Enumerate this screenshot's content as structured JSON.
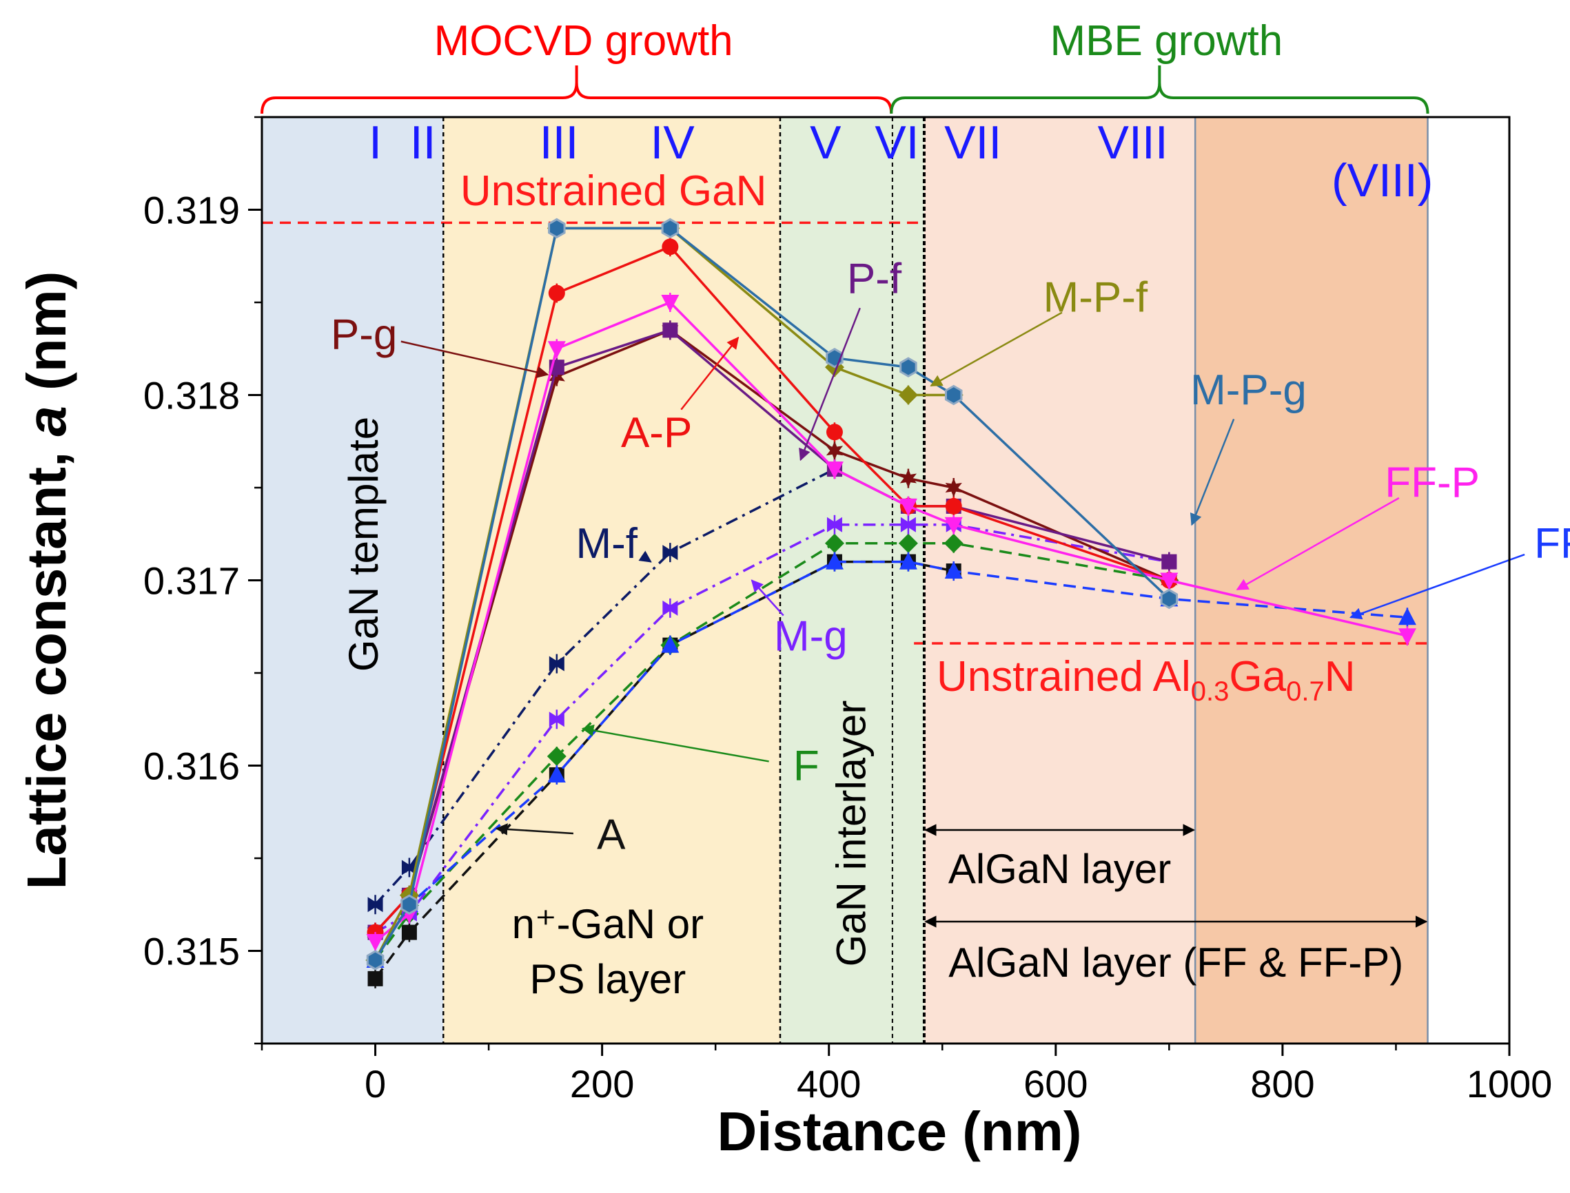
{
  "chart_data": {
    "type": "line",
    "xlabel": "Distance (nm)",
    "ylabel_main": "Lattice constant, ",
    "ylabel_var": "a",
    "ylabel_unit": " (nm)",
    "xlim": [
      -100,
      1000
    ],
    "ylim": [
      0.3145,
      0.3195
    ],
    "x_ticks": [
      0,
      200,
      400,
      600,
      800,
      1000
    ],
    "y_ticks": [
      0.315,
      0.316,
      0.317,
      0.318,
      0.319
    ],
    "x_tick_labels": [
      "0",
      "200",
      "400",
      "600",
      "800",
      "1000"
    ],
    "y_tick_labels": [
      "0.315",
      "0.316",
      "0.317",
      "0.318",
      "0.319"
    ],
    "regions": [
      {
        "name": "GaN template",
        "x0": -100,
        "x1": 60,
        "color": "#dce6f2"
      },
      {
        "name": "n+-GaN or PS layer",
        "x0": 60,
        "x1": 357,
        "color": "#fdeecb"
      },
      {
        "name": "GaN interlayer",
        "x0": 357,
        "x1": 484,
        "color": "#e2efda"
      },
      {
        "name": "AlGaN layer",
        "x0": 484,
        "x1": 723,
        "color": "#fbe2d5"
      },
      {
        "name": "AlGaN layer (FF & FF-P)",
        "x0": 723,
        "x1": 928,
        "color": "#f6c8a7"
      }
    ],
    "growth_brackets": [
      {
        "label": "MOCVD growth",
        "x0": -100,
        "x1": 455,
        "color": "#ff0000"
      },
      {
        "label": "MBE growth",
        "x0": 455,
        "x1": 928,
        "color": "#1a8a1a"
      }
    ],
    "stage_labels": [
      {
        "text": "I",
        "x": 0
      },
      {
        "text": "II",
        "x": 42
      },
      {
        "text": "III",
        "x": 162
      },
      {
        "text": "IV",
        "x": 262
      },
      {
        "text": "V",
        "x": 397
      },
      {
        "text": "VI",
        "x": 460
      },
      {
        "text": "VII",
        "x": 527
      },
      {
        "text": "VIII",
        "x": 668
      },
      {
        "text": "(VIII)",
        "x": 888
      }
    ],
    "stage_label_color": "#1a1aff",
    "reference_lines": [
      {
        "label": "Unstrained GaN",
        "y": 0.31893,
        "x0": -100,
        "x1": 484
      },
      {
        "label_main": "Unstrained Al",
        "sub1": "0.3",
        "label_mid": "Ga",
        "sub2": "0.7",
        "label_end": "N",
        "y": 0.31666,
        "x0": 475,
        "x1": 928
      }
    ],
    "region_labels": {
      "gan_template": "GaN template",
      "ps_line1": "n⁺-GaN or",
      "ps_line2": "PS layer",
      "interlayer": "GaN interlayer",
      "algan": "AlGaN  layer",
      "algan_ff": "AlGaN  layer (FF & FF-P)"
    },
    "series": [
      {
        "name": "A",
        "color": "#111111",
        "dash": "18,10",
        "marker": "square",
        "x": [
          0,
          30,
          160,
          260,
          405,
          470,
          510
        ],
        "y": [
          0.31485,
          0.3151,
          0.31595,
          0.31665,
          0.3171,
          0.3171,
          0.31705
        ]
      },
      {
        "name": "F",
        "color": "#1a8a1a",
        "dash": "18,10",
        "marker": "diamond",
        "x": [
          0,
          30,
          160,
          260,
          405,
          470,
          510,
          700
        ],
        "y": [
          0.31495,
          0.3152,
          0.31605,
          0.31665,
          0.3172,
          0.3172,
          0.3172,
          0.317
        ]
      },
      {
        "name": "FF",
        "color": "#1a3cff",
        "dash": "18,10",
        "marker": "triangle",
        "x": [
          0,
          30,
          160,
          260,
          405,
          470,
          510,
          700,
          910
        ],
        "y": [
          0.31495,
          0.31525,
          0.31595,
          0.31665,
          0.3171,
          0.3171,
          0.31705,
          0.3169,
          0.3168
        ]
      },
      {
        "name": "M-f",
        "color": "#0b1a66",
        "dash": "18,8,4,8",
        "marker": "bowtie",
        "x": [
          0,
          30,
          160,
          260,
          405
        ],
        "y": [
          0.31525,
          0.31545,
          0.31655,
          0.31715,
          0.3176
        ]
      },
      {
        "name": "M-g",
        "color": "#7a22ff",
        "dash": "18,8,4,8",
        "marker": "bowtie",
        "x": [
          0,
          30,
          160,
          260,
          405,
          470,
          510,
          700
        ],
        "y": [
          0.3151,
          0.3152,
          0.31625,
          0.31685,
          0.3173,
          0.3173,
          0.3173,
          0.3171
        ]
      },
      {
        "name": "P-g",
        "color": "#7b1010",
        "dash": "",
        "marker": "star",
        "x": [
          0,
          30,
          160,
          260,
          405,
          470,
          510,
          700
        ],
        "y": [
          0.3151,
          0.3153,
          0.3181,
          0.31835,
          0.3177,
          0.31755,
          0.3175,
          0.317
        ]
      },
      {
        "name": "P-f",
        "color": "#6a1a86",
        "dash": "",
        "marker": "square",
        "x": [
          0,
          30,
          160,
          260,
          405,
          470,
          510,
          700
        ],
        "y": [
          0.3151,
          0.3153,
          0.31815,
          0.31835,
          0.3176,
          0.3174,
          0.3174,
          0.3171
        ]
      },
      {
        "name": "A-P",
        "color": "#ee1111",
        "dash": "",
        "marker": "circle",
        "x": [
          0,
          30,
          160,
          260,
          405,
          470,
          510,
          700
        ],
        "y": [
          0.3151,
          0.3153,
          0.31855,
          0.3188,
          0.3178,
          0.3174,
          0.3174,
          0.317
        ]
      },
      {
        "name": "FF-P",
        "color": "#ff22ee",
        "dash": "",
        "marker": "invtriangle",
        "x": [
          0,
          30,
          160,
          260,
          405,
          470,
          510,
          700,
          910
        ],
        "y": [
          0.31505,
          0.3152,
          0.31825,
          0.3185,
          0.3176,
          0.3174,
          0.3173,
          0.317,
          0.3167
        ]
      },
      {
        "name": "M-P-f",
        "color": "#8a8a12",
        "dash": "",
        "marker": "diamond",
        "x": [
          0,
          30,
          160,
          260,
          405,
          470,
          510
        ],
        "y": [
          0.31495,
          0.3153,
          0.3189,
          0.3189,
          0.31815,
          0.318,
          0.318
        ]
      },
      {
        "name": "M-P-g",
        "color": "#2c6ea6",
        "dash": "",
        "marker": "hexagon",
        "x": [
          0,
          30,
          160,
          260,
          405,
          470,
          510,
          700
        ],
        "y": [
          0.31495,
          0.31525,
          0.3189,
          0.3189,
          0.3182,
          0.31815,
          0.318,
          0.3169
        ]
      }
    ],
    "annotations": [
      {
        "text": "P-g",
        "color": "#7b1010",
        "tx": -10,
        "ty": 0.31825,
        "ax": 152,
        "ay": 0.31811
      },
      {
        "text": "A-P",
        "color": "#ee1111",
        "tx": 248,
        "ty": 0.31772,
        "ax": 320,
        "ay": 0.31831
      },
      {
        "text": "P-f",
        "color": "#6a1a86",
        "tx": 440,
        "ty": 0.31855,
        "ax": 375,
        "ay": 0.31765
      },
      {
        "text": "M-P-f",
        "color": "#8a8a12",
        "tx": 635,
        "ty": 0.31845,
        "ax": 490,
        "ay": 0.31805
      },
      {
        "text": "M-P-g",
        "color": "#2c6ea6",
        "tx": 770,
        "ty": 0.31795,
        "ax": 720,
        "ay": 0.3173
      },
      {
        "text": "M-f",
        "color": "#0b1a66",
        "tx": 204,
        "ty": 0.31712,
        "ax": 243,
        "ay": 0.3171
      },
      {
        "text": "M-g",
        "color": "#7a22ff",
        "tx": 384,
        "ty": 0.31662,
        "ax": 332,
        "ay": 0.317
      },
      {
        "text": "F",
        "color": "#1a8a1a",
        "tx": 380,
        "ty": 0.31592,
        "ax": 183,
        "ay": 0.3162
      },
      {
        "text": "A",
        "color": "#111111",
        "tx": 208,
        "ty": 0.31555,
        "ax": 107,
        "ay": 0.31566
      },
      {
        "text": "FF-P",
        "color": "#ff22ee",
        "tx": 932,
        "ty": 0.31745,
        "ax": 760,
        "ay": 0.31695
      },
      {
        "text": "FF",
        "color": "#1a3cff",
        "tx": 1045,
        "ty": 0.31712,
        "ax": 860,
        "ay": 0.3168
      }
    ]
  }
}
